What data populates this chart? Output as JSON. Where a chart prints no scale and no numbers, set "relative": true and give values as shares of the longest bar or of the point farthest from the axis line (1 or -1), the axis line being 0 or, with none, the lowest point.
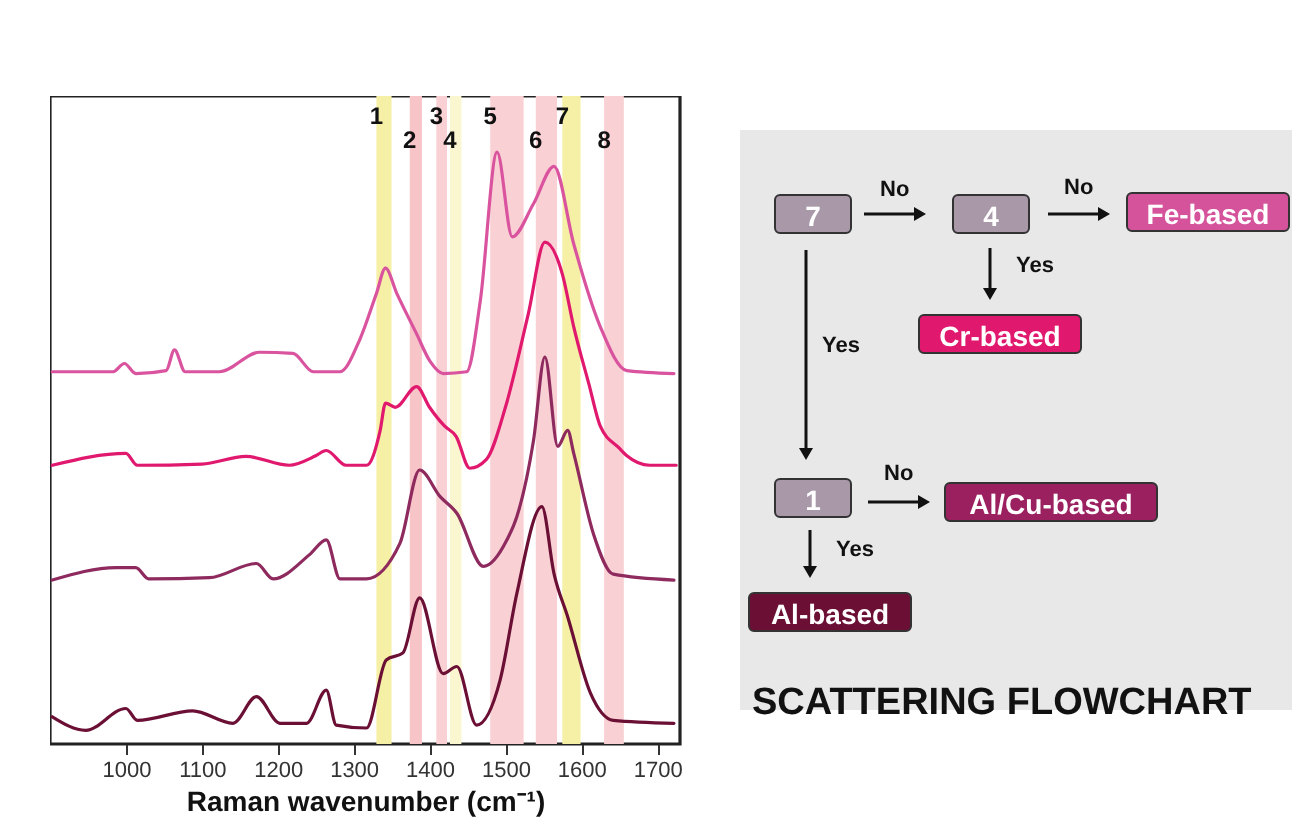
{
  "chart_data": [
    {
      "type": "line",
      "relative": true,
      "xlabel": "Raman wavenumber (cm⁻¹)",
      "xlim": [
        900,
        1730
      ],
      "xticks": [
        1000,
        1100,
        1200,
        1300,
        1400,
        1500,
        1600,
        1700
      ],
      "grid": false,
      "series": [
        {
          "color": "#d9539f",
          "x": [
            903,
            983,
            998,
            1013,
            1053,
            1064,
            1078,
            1123,
            1176,
            1220,
            1247,
            1282,
            1308,
            1330,
            1342,
            1357,
            1383,
            1401,
            1418,
            1449,
            1467,
            1489,
            1509,
            1537,
            1564,
            1590,
            1625,
            1660,
            1722
          ],
          "values": [
            0.629,
            0.629,
            0.643,
            0.626,
            0.631,
            0.666,
            0.629,
            0.629,
            0.662,
            0.66,
            0.629,
            0.629,
            0.683,
            0.761,
            0.804,
            0.761,
            0.693,
            0.646,
            0.626,
            0.629,
            0.75,
            1.0,
            0.857,
            0.913,
            0.976,
            0.845,
            0.705,
            0.631,
            0.626
          ]
        },
        {
          "color": "#e0186e",
          "x": [
            903,
            1000,
            1015,
            1100,
            1158,
            1215,
            1250,
            1264,
            1290,
            1317,
            1335,
            1342,
            1355,
            1383,
            1400,
            1420,
            1435,
            1453,
            1475,
            1500,
            1530,
            1552,
            1575,
            1590,
            1610,
            1625,
            1650,
            1660,
            1690,
            1725
          ],
          "values": [
            0.471,
            0.491,
            0.471,
            0.473,
            0.486,
            0.471,
            0.487,
            0.496,
            0.471,
            0.471,
            0.53,
            0.576,
            0.569,
            0.604,
            0.569,
            0.537,
            0.52,
            0.466,
            0.481,
            0.569,
            0.726,
            0.848,
            0.794,
            0.705,
            0.608,
            0.537,
            0.5,
            0.487,
            0.471,
            0.471
          ]
        },
        {
          "color": "#8e2a5e",
          "x": [
            903,
            987,
            1013,
            1030,
            1110,
            1172,
            1194,
            1242,
            1264,
            1282,
            1317,
            1361,
            1387,
            1414,
            1436,
            1471,
            1502,
            1515,
            1537,
            1552,
            1569,
            1582,
            1590,
            1616,
            1642,
            1722
          ],
          "values": [
            0.277,
            0.298,
            0.298,
            0.279,
            0.281,
            0.305,
            0.279,
            0.32,
            0.345,
            0.279,
            0.279,
            0.339,
            0.463,
            0.418,
            0.39,
            0.3,
            0.345,
            0.384,
            0.513,
            0.654,
            0.503,
            0.53,
            0.491,
            0.355,
            0.287,
            0.277
          ]
        },
        {
          "color": "#6b0f35",
          "x": [
            903,
            947,
            1000,
            1015,
            1088,
            1141,
            1172,
            1203,
            1238,
            1264,
            1277,
            1317,
            1343,
            1365,
            1387,
            1418,
            1436,
            1462,
            1493,
            1515,
            1548,
            1564,
            1582,
            1612,
            1642,
            1722
          ],
          "values": [
            0.046,
            0.023,
            0.06,
            0.04,
            0.056,
            0.035,
            0.08,
            0.035,
            0.035,
            0.091,
            0.032,
            0.027,
            0.142,
            0.154,
            0.247,
            0.119,
            0.131,
            0.032,
            0.108,
            0.254,
            0.401,
            0.288,
            0.215,
            0.086,
            0.04,
            0.035
          ]
        }
      ],
      "bands": [
        {
          "axis": "x",
          "from": 1330,
          "to": 1350,
          "label": "1",
          "color": "#f5f0a6"
        },
        {
          "axis": "x",
          "from": 1374,
          "to": 1390,
          "label": "2",
          "color": "#f7c4c8"
        },
        {
          "axis": "x",
          "from": 1409,
          "to": 1423,
          "label": "3",
          "color": "#f9d0d3"
        },
        {
          "axis": "x",
          "from": 1427,
          "to": 1442,
          "label": "4",
          "color": "#faf6cf"
        },
        {
          "axis": "x",
          "from": 1480,
          "to": 1524,
          "label": "5",
          "color": "#f9d0d3"
        },
        {
          "axis": "x",
          "from": 1540,
          "to": 1568,
          "label": "6",
          "color": "#f9d0d3"
        },
        {
          "axis": "x",
          "from": 1575,
          "to": 1599,
          "label": "7",
          "color": "#f5f0a6"
        },
        {
          "axis": "x",
          "from": 1630,
          "to": 1656,
          "label": "8",
          "color": "#f9d0d3"
        }
      ]
    },
    {
      "type": "other",
      "title": "SCATTERING FLOWCHART",
      "annotations": [
        "7",
        "No",
        "4",
        "No",
        "Fe-based",
        "Yes",
        "Cr-based",
        "Yes",
        "1",
        "No",
        "Al/Cu-based",
        "Yes",
        "Al-based"
      ]
    }
  ]
}
